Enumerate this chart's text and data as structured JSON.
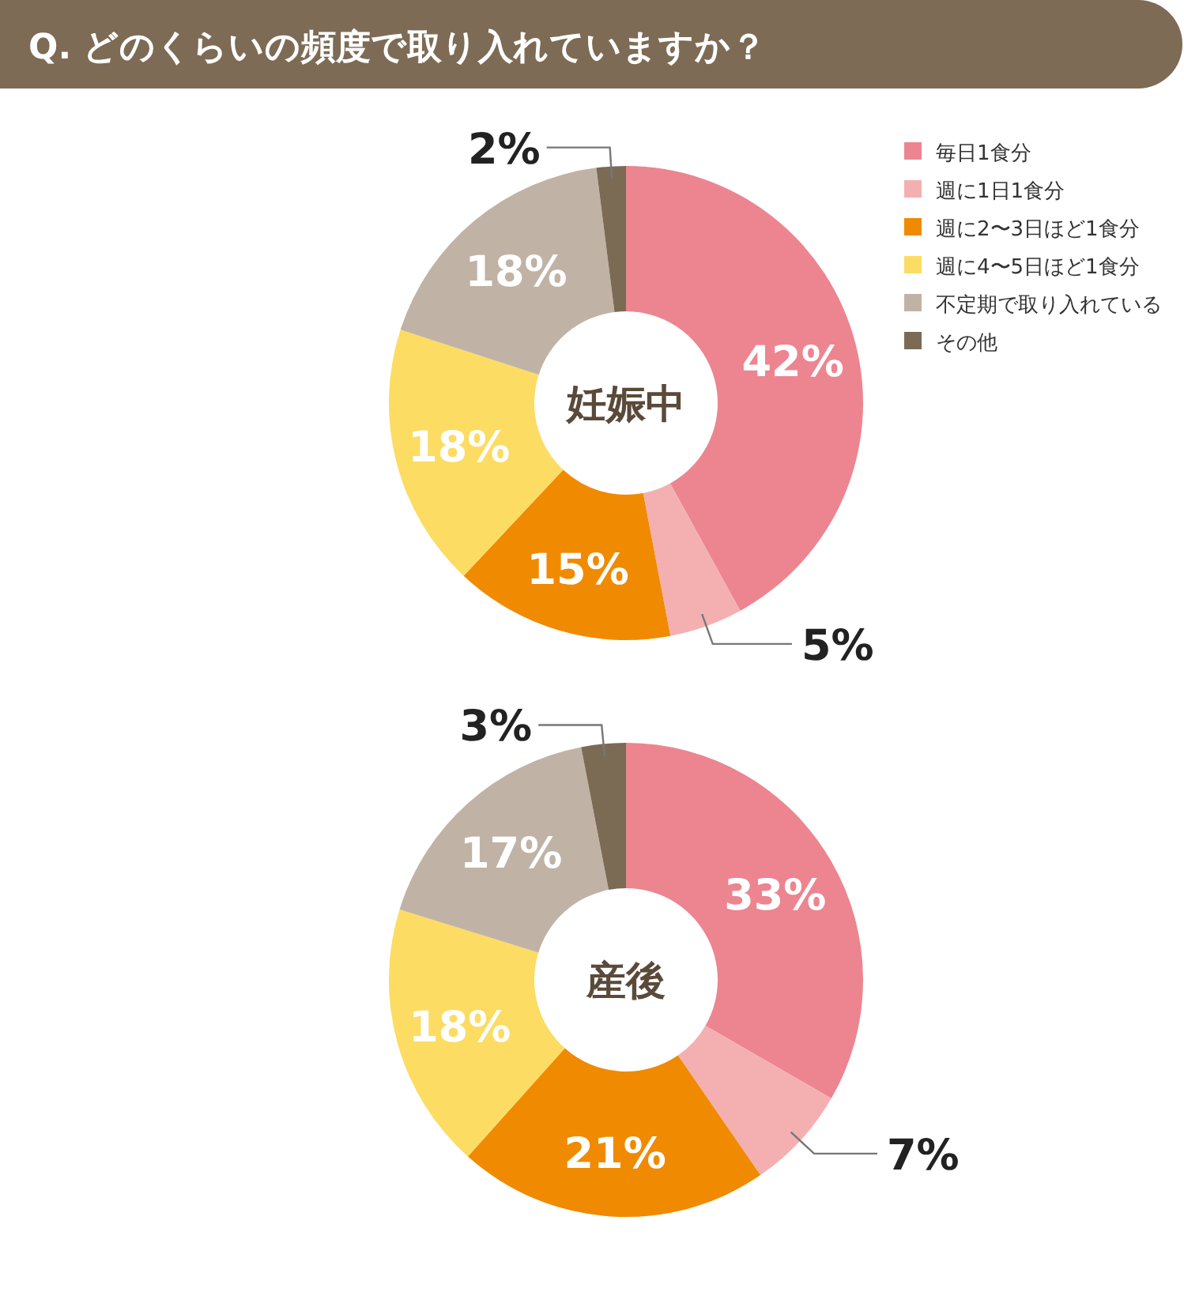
{
  "chart_data": [
    {
      "type": "donut",
      "title": "Q. どのくらいの頻度で取り入れていますか？",
      "subtitle": "妊娠中",
      "categories": [
        "毎日1食分",
        "週に1日1食分",
        "週に2〜3日ほど1食分",
        "週に4〜5日ほど1食分",
        "不定期で取り入れている",
        "その他"
      ],
      "values": [
        42,
        5,
        15,
        18,
        18,
        2
      ],
      "value_labels": [
        "42%",
        "5%",
        "15%",
        "18%",
        "18%",
        "2%"
      ],
      "colors": [
        "#ec8590",
        "#f4b0b1",
        "#f08a00",
        "#fcdc62",
        "#c0b3a6",
        "#7b6b55"
      ],
      "legend": "top right"
    },
    {
      "type": "donut",
      "subtitle": "産後",
      "categories": [
        null,
        null,
        null,
        null,
        null,
        null
      ],
      "values": [
        33,
        7,
        21,
        18,
        17,
        3
      ],
      "value_labels": [
        "33%",
        "7%",
        "21%",
        "18%",
        "17%",
        "3%"
      ],
      "colors": [
        "#ec8590",
        "#f4b0b1",
        "#f08a00",
        "#fcdc62",
        "#c0b3a6",
        "#7b6b55"
      ]
    }
  ]
}
